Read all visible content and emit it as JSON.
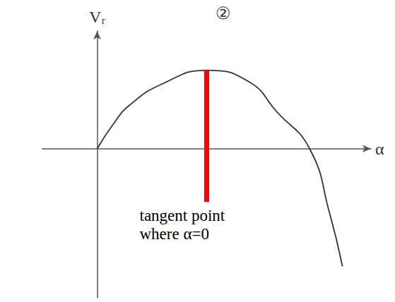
{
  "chart_data": {
    "type": "line",
    "title": "②",
    "xlabel": "α",
    "ylabel": "Vᵣ",
    "xlim": [
      -0.5,
      2.5
    ],
    "ylim": [
      -1.9,
      1.5
    ],
    "xticks": [],
    "yticks": [],
    "tick_labels": false,
    "grid": false,
    "series": [
      {
        "x": [
          0,
          0.15,
          0.3,
          0.6,
          1.0,
          1.39,
          1.64,
          1.94,
          2.12,
          2.24
        ],
        "values": [
          0,
          0.32,
          0.56,
          0.83,
          1.0,
          0.85,
          0.47,
          0,
          -0.81,
          -1.5
        ],
        "color": "#333333",
        "line_style": "solid",
        "marker": "none"
      },
      {
        "x": [
          1.0,
          1.0
        ],
        "values": [
          -0.68,
          1.0
        ],
        "color": "#ff0000",
        "line_style": "solid",
        "marker": "none"
      }
    ],
    "annotations": [
      {
        "lines": [
          "tangent point",
          "where α=0"
        ],
        "x": 1.0,
        "y": -0.68
      }
    ]
  }
}
